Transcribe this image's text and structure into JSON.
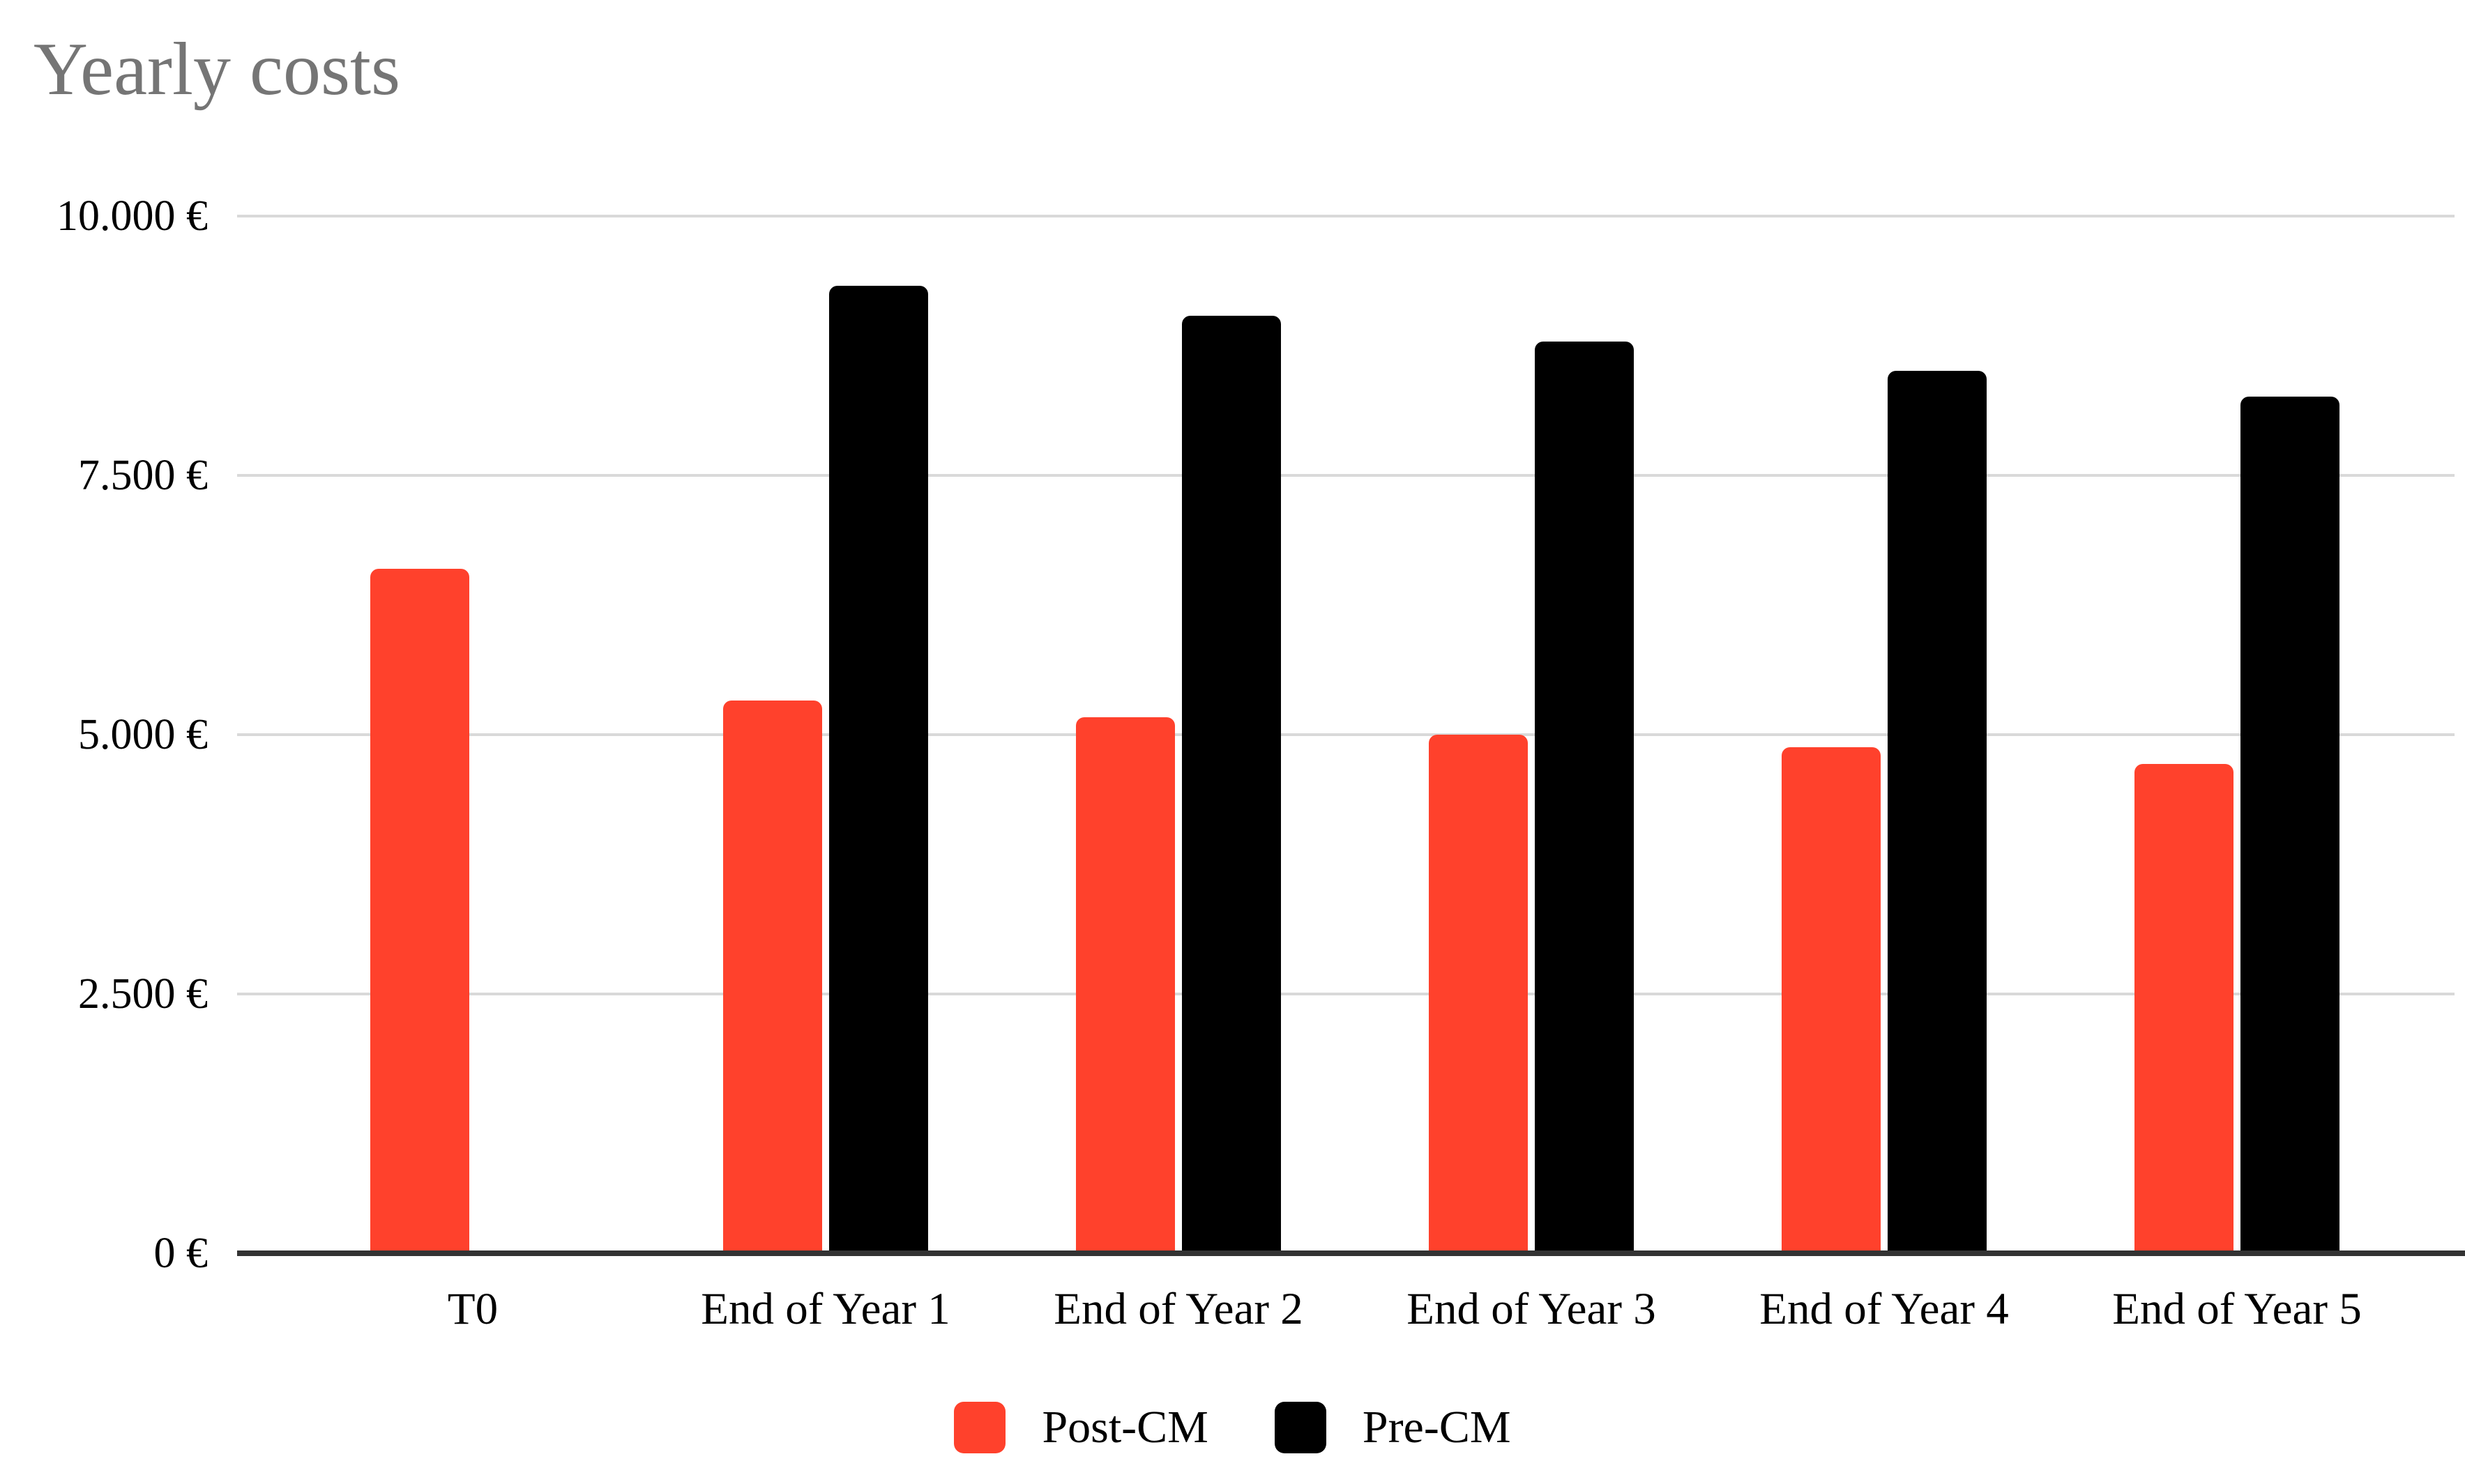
{
  "chart_data": {
    "type": "bar",
    "title": "Yearly costs",
    "categories": [
      "T0",
      "End of Year 1",
      "End of Year 2",
      "End of Year 3",
      "End of Year 4",
      "End of Year 5"
    ],
    "series": [
      {
        "name": "Post-CM",
        "color": "#FF412C",
        "values": [
          6600,
          5330,
          5170,
          5000,
          4880,
          4720
        ]
      },
      {
        "name": "Pre-CM",
        "color": "#000000",
        "values": [
          null,
          9330,
          9040,
          8790,
          8510,
          8260
        ]
      }
    ],
    "y_axis": {
      "range": [
        0,
        10000
      ],
      "ticks": [
        {
          "value": 0,
          "label": "0 €"
        },
        {
          "value": 2500,
          "label": "2.500 €"
        },
        {
          "value": 5000,
          "label": "5.000 €"
        },
        {
          "value": 7500,
          "label": "7.500 €"
        },
        {
          "value": 10000,
          "label": "10.000 €"
        }
      ]
    },
    "grid": true,
    "legend_position": "bottom",
    "colors": {
      "grid_line": "#D9D9D9",
      "axis_line": "#333333",
      "title_text": "#757575",
      "tick_text": "#000000",
      "background": "#FFFFFF"
    }
  }
}
